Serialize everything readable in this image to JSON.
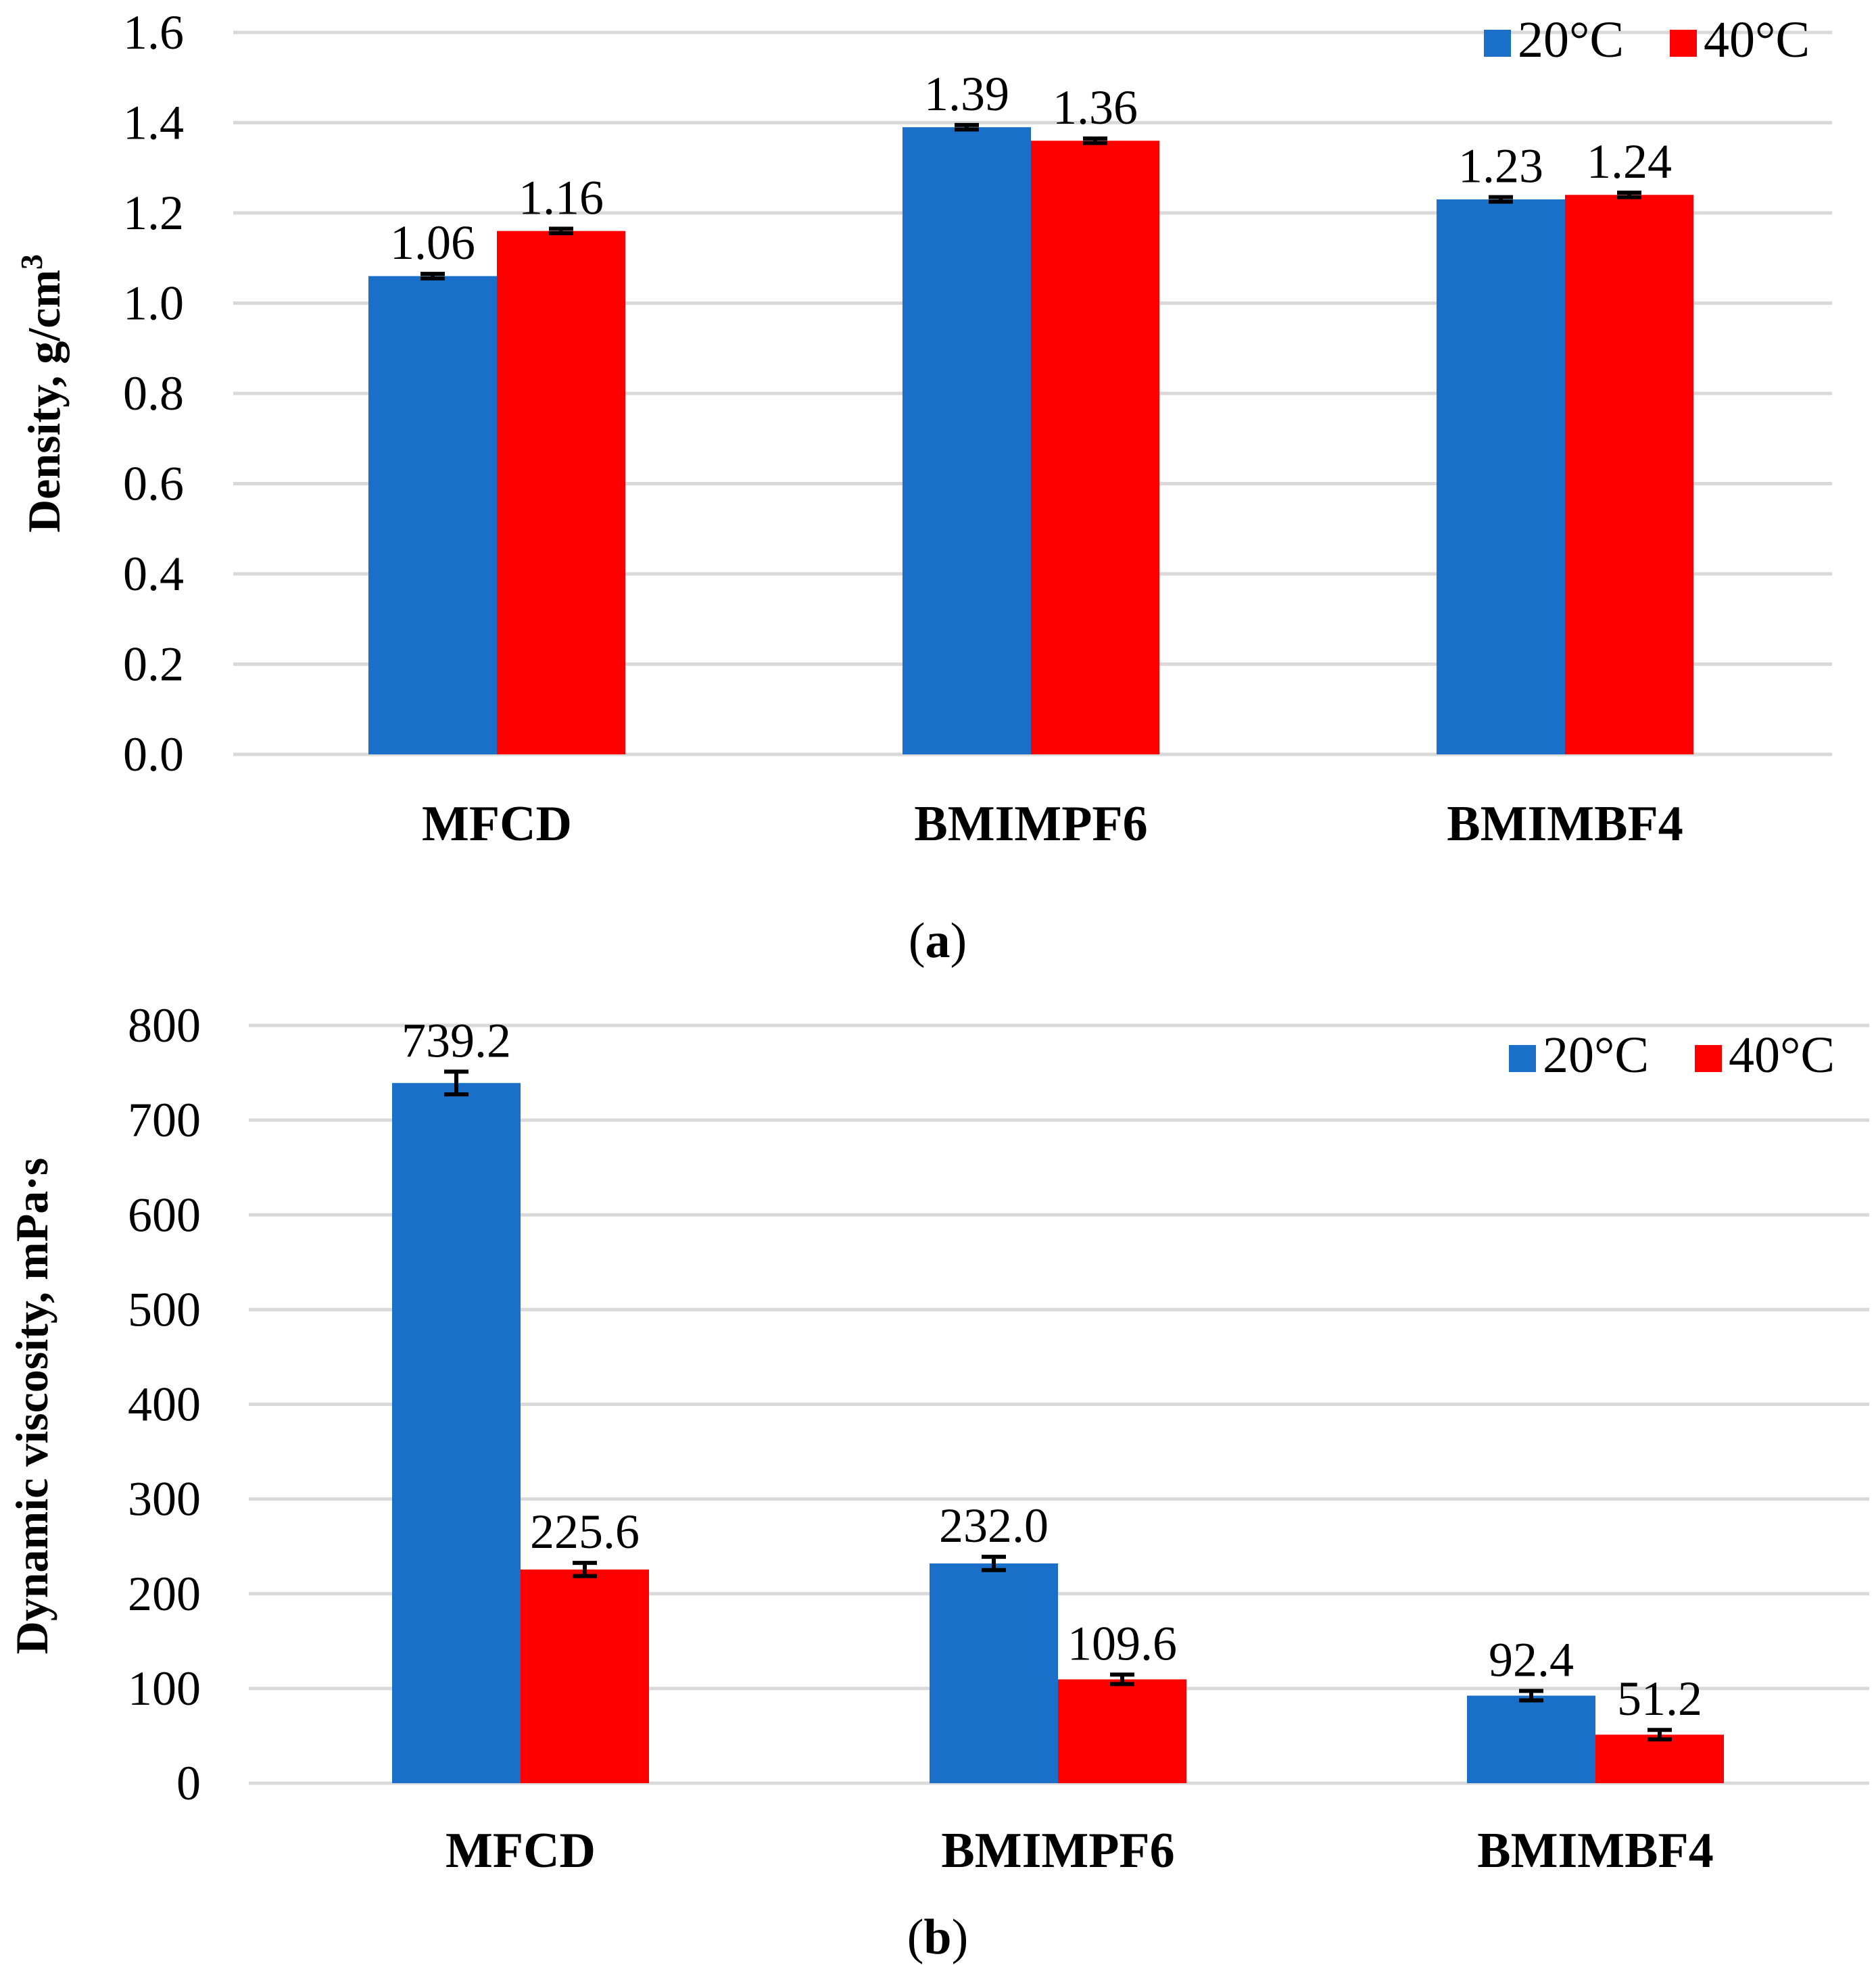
{
  "chart_data": [
    {
      "type": "bar",
      "panel": "a",
      "caption": "a",
      "categories": [
        "MFCD",
        "BMIMPF6",
        "BMIMBF4"
      ],
      "series": [
        {
          "name": "20°C",
          "color": "#1a70c8",
          "values": [
            1.06,
            1.39,
            1.23
          ],
          "labels": [
            "1.06",
            "1.39",
            "1.23"
          ],
          "errors": [
            0.005,
            0.005,
            0.005
          ]
        },
        {
          "name": "40°C",
          "color": "#ff0000",
          "values": [
            1.16,
            1.36,
            1.24
          ],
          "labels": [
            "1.16",
            "1.36",
            "1.24"
          ],
          "errors": [
            0.005,
            0.005,
            0.005
          ]
        }
      ],
      "ylabel": "Density, g/cm",
      "ylabel_sup": "3",
      "ylim": [
        0,
        1.6
      ],
      "yticks": [
        0,
        0.2,
        0.4,
        0.6,
        0.8,
        1.0,
        1.2,
        1.4,
        1.6
      ],
      "ytick_labels": [
        "0.0",
        "0.2",
        "0.4",
        "0.6",
        "0.8",
        "1.0",
        "1.2",
        "1.4",
        "1.6"
      ],
      "legend": "top-right",
      "grid": true
    },
    {
      "type": "bar",
      "panel": "b",
      "caption": "b",
      "categories": [
        "MFCD",
        "BMIMPF6",
        "BMIMBF4"
      ],
      "series": [
        {
          "name": "20°C",
          "color": "#1a70c8",
          "values": [
            739.2,
            232.0,
            92.4
          ],
          "labels": [
            "739.2",
            "232.0",
            "92.4"
          ],
          "errors": [
            12,
            7,
            5
          ]
        },
        {
          "name": "40°C",
          "color": "#ff0000",
          "values": [
            225.6,
            109.6,
            51.2
          ],
          "labels": [
            "225.6",
            "109.6",
            "51.2"
          ],
          "errors": [
            7,
            5,
            5
          ]
        }
      ],
      "ylabel": "Dynamic viscosity, mPa·s",
      "ylim": [
        0,
        800
      ],
      "yticks": [
        0,
        100,
        200,
        300,
        400,
        500,
        600,
        700,
        800
      ],
      "ytick_labels": [
        "0",
        "100",
        "200",
        "300",
        "400",
        "500",
        "600",
        "700",
        "800"
      ],
      "legend": "top-right",
      "grid": true
    }
  ]
}
